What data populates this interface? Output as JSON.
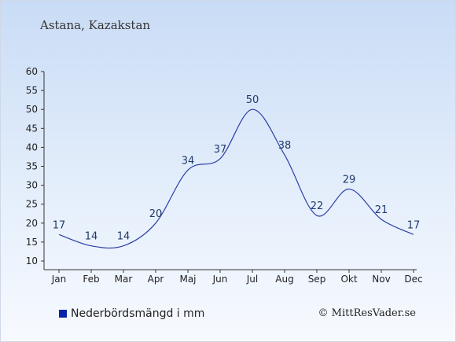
{
  "header": {
    "location": "Astana, Kazakstan"
  },
  "legend": {
    "label": "Nederbördsmängd i mm",
    "swatch_color": "#0a22a8"
  },
  "footer": {
    "copyright": "© MittResVader.se"
  },
  "colors": {
    "line": "#2b3fa6",
    "axis": "#333333"
  },
  "chart_data": {
    "type": "line",
    "categories": [
      "Jan",
      "Feb",
      "Mar",
      "Apr",
      "Maj",
      "Jun",
      "Jul",
      "Aug",
      "Sep",
      "Okt",
      "Nov",
      "Dec"
    ],
    "series": [
      {
        "name": "Nederbördsmängd i mm",
        "values": [
          17,
          14,
          14,
          20,
          34,
          37,
          50,
          38,
          22,
          29,
          21,
          17
        ]
      }
    ],
    "ylim": [
      10,
      60
    ],
    "yticks": [
      10,
      15,
      20,
      25,
      30,
      35,
      40,
      45,
      50,
      55,
      60
    ],
    "grid": false,
    "legend_position": "bottom-left"
  }
}
